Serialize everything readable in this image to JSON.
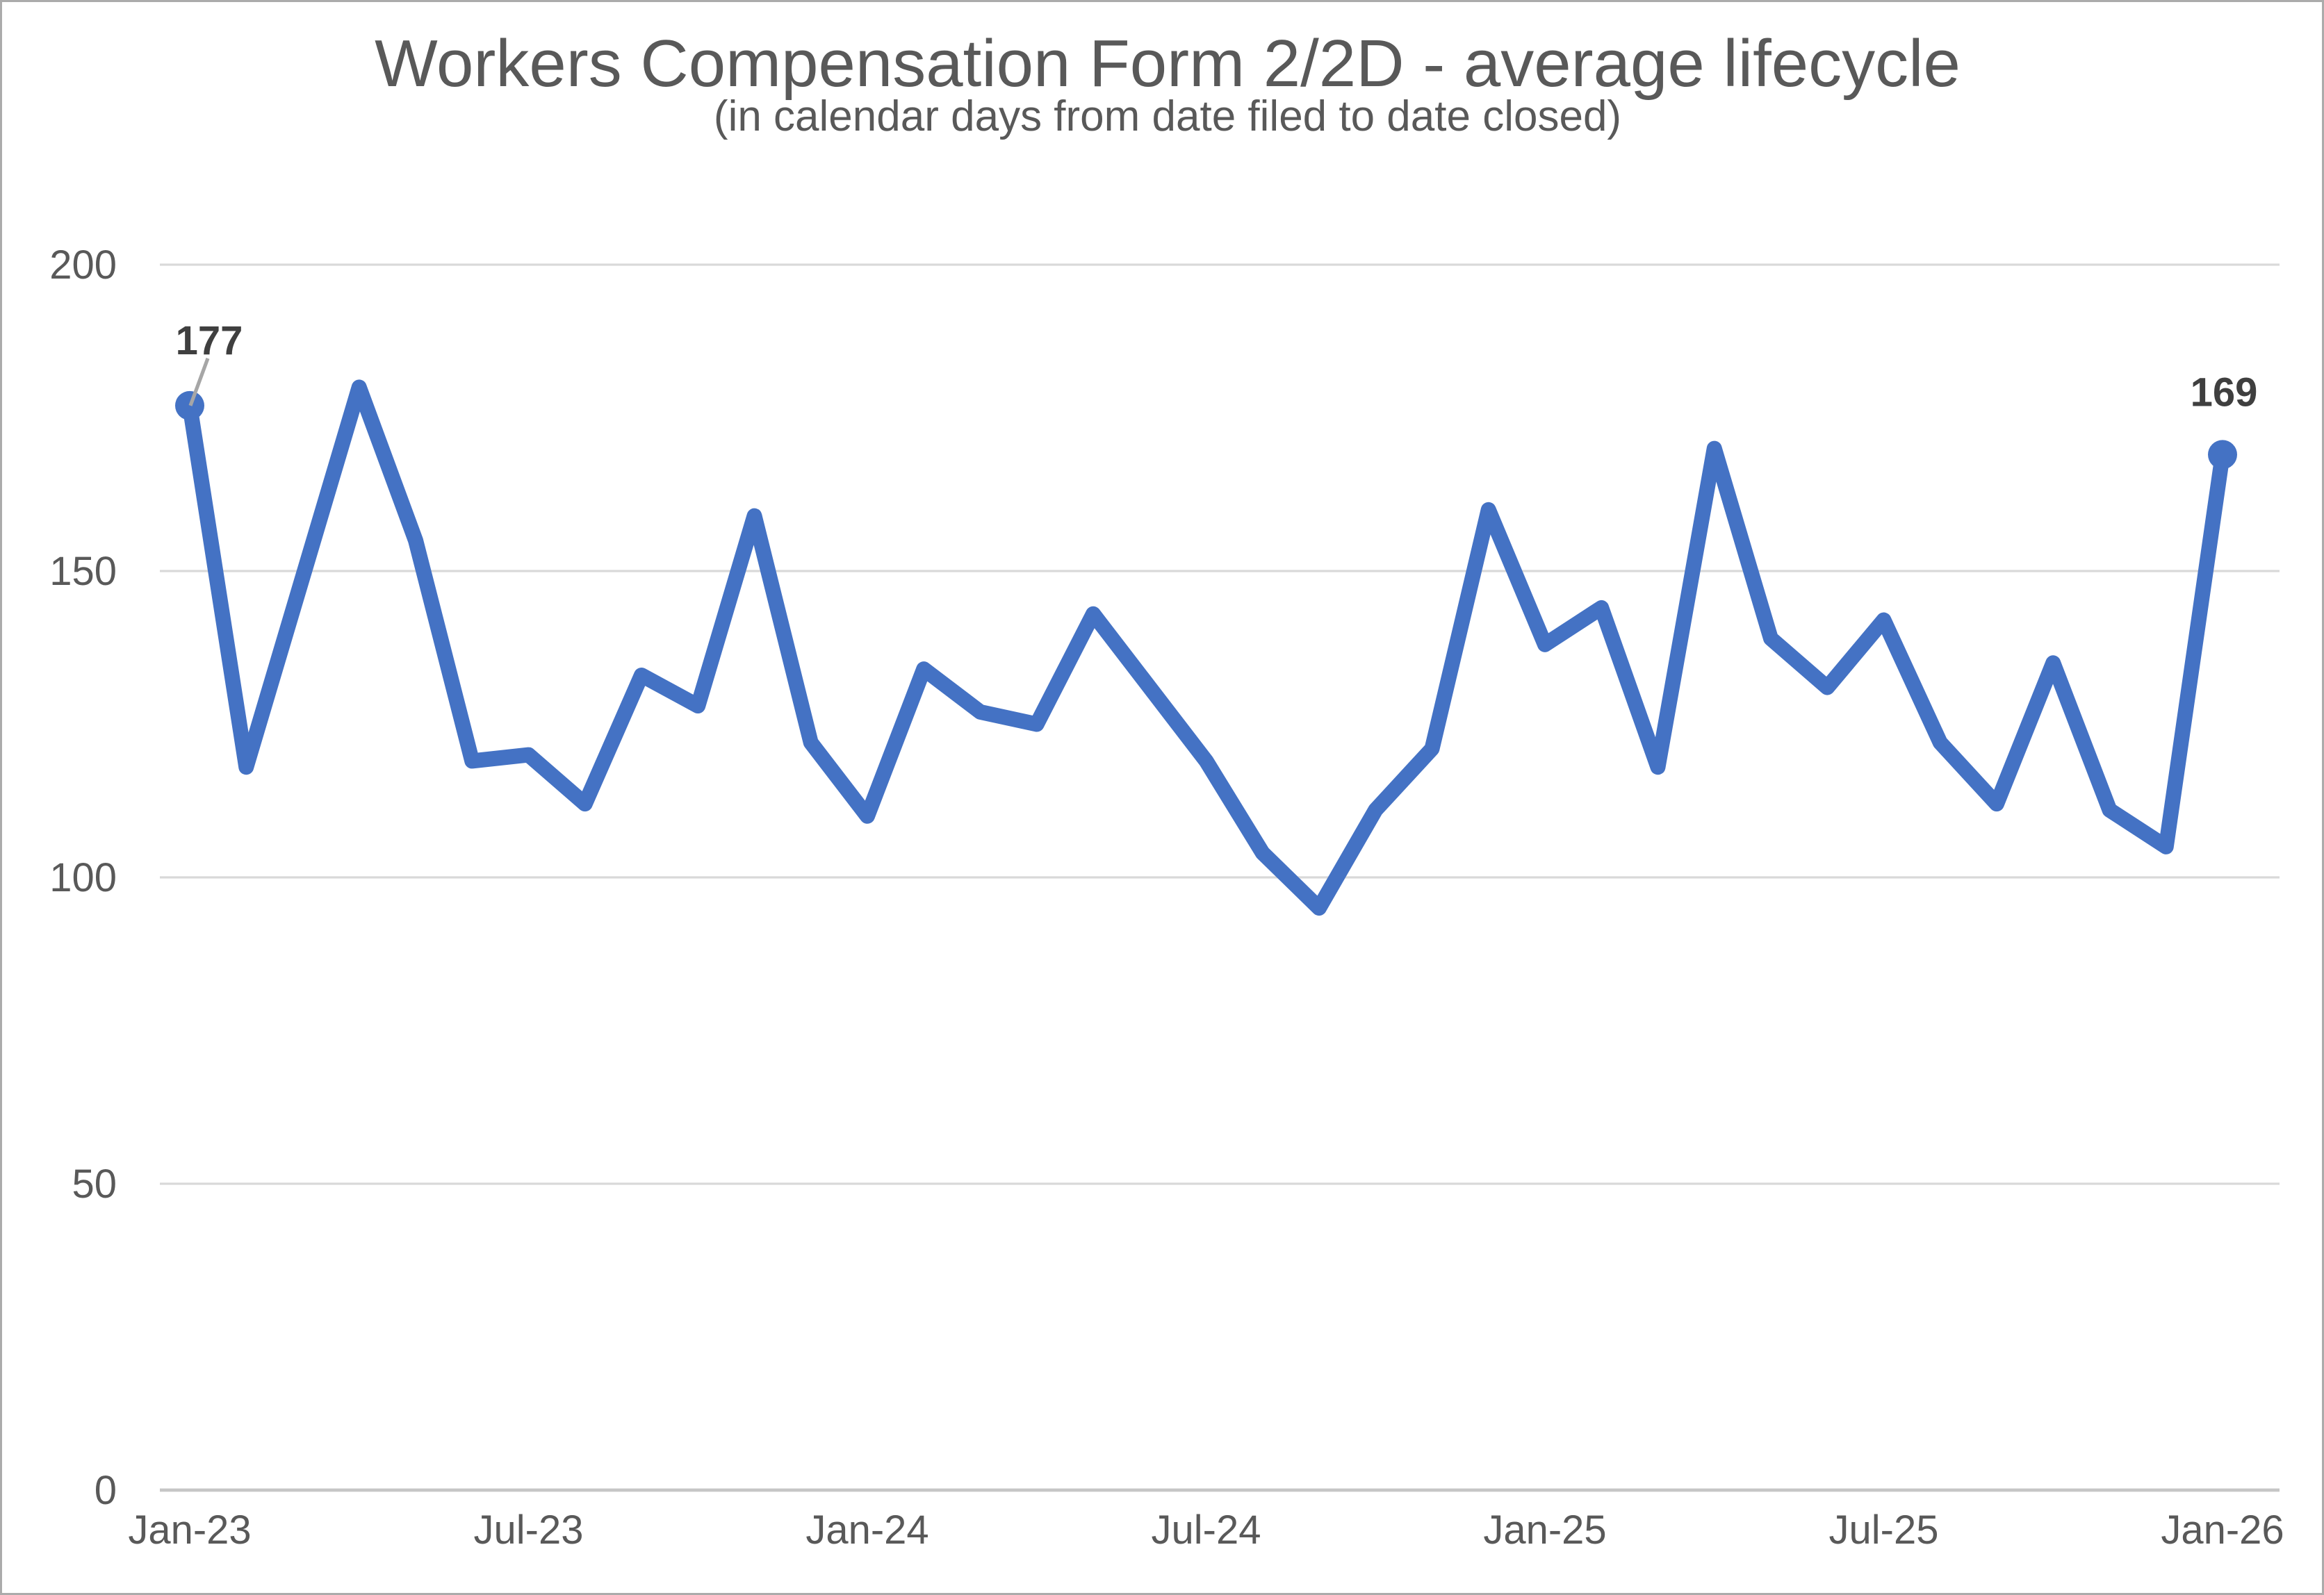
{
  "chart_data": {
    "type": "line",
    "title": "Workers Compensation Form 2/2D  - average lifecycle",
    "subtitle": "(in calendar days from date filed to date closed)",
    "categories": [
      "Jan-23",
      "Feb-23",
      "Mar-23",
      "Apr-23",
      "May-23",
      "Jun-23",
      "Jul-23",
      "Aug-23",
      "Sep-23",
      "Oct-23",
      "Nov-23",
      "Dec-23",
      "Jan-24",
      "Feb-24",
      "Mar-24",
      "Apr-24",
      "May-24",
      "Jun-24",
      "Jul-24",
      "Aug-24",
      "Sep-24",
      "Oct-24",
      "Nov-24",
      "Dec-24",
      "Jan-25",
      "Feb-25",
      "Mar-25",
      "Apr-25",
      "May-25",
      "Jun-25",
      "Jul-25",
      "Aug-25",
      "Sep-25",
      "Oct-25",
      "Nov-25",
      "Dec-25",
      "Jan-26"
    ],
    "values": [
      177,
      118,
      149,
      180,
      155,
      119,
      120,
      112,
      133,
      128,
      159,
      122,
      110,
      134,
      127,
      125,
      143,
      131,
      119,
      104,
      95,
      111,
      121,
      160,
      138,
      144,
      118,
      170,
      139,
      131,
      142,
      122,
      112,
      135,
      111,
      105,
      169
    ],
    "ylim": [
      0,
      200
    ],
    "yticks": [
      0,
      50,
      100,
      150,
      200
    ],
    "xtick_labels": [
      "Jan-23",
      "Jul-23",
      "Jan-24",
      "Jul-24",
      "Jan-25",
      "Jul-25",
      "Jan-26"
    ],
    "xtick_every": 6,
    "grid": "horizontal-only",
    "legend": "none",
    "marked_points": [
      {
        "index": 0,
        "label": "177"
      },
      {
        "index": 36,
        "label": "169"
      }
    ],
    "colors": {
      "line": "#4472C4",
      "gridline": "#D9D9D9",
      "axis_line": "#C6C6C6",
      "title_text": "#595959",
      "axis_text": "#595959",
      "data_label_text": "#3F3F3F",
      "leader": "#A6A6A6",
      "border": "#ABABAB"
    }
  }
}
